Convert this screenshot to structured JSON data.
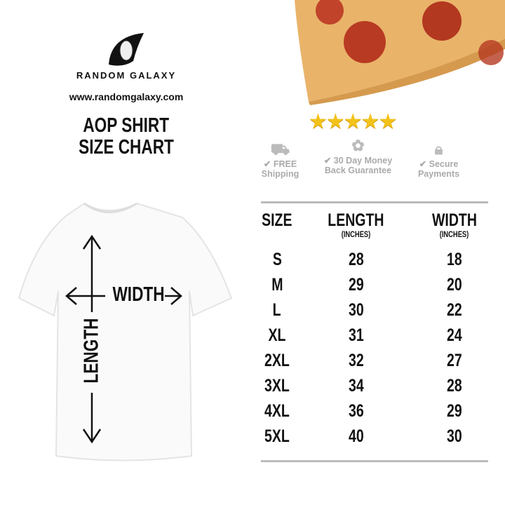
{
  "brand": {
    "name": "RANDOM GALAXY",
    "url": "www.randomgalaxy.com"
  },
  "title": {
    "line1": "AOP SHIRT",
    "line2": "SIZE CHART"
  },
  "rating": {
    "stars": 5,
    "max": 5,
    "color": "#f3c21a"
  },
  "badges": [
    {
      "icon": "truck-icon",
      "label": "FREE Shipping"
    },
    {
      "icon": "award-ribbon-icon",
      "label": "30 Day Money Back Guarantee"
    },
    {
      "icon": "lock-icon",
      "label": "Secure Payments"
    }
  ],
  "diagram": {
    "width_label": "WIDTH",
    "length_label": "LENGTH"
  },
  "table": {
    "headers": [
      "SIZE",
      "LENGTH",
      "WIDTH"
    ],
    "units": [
      "",
      "(INCHES)",
      "(INCHES)"
    ],
    "rows": [
      [
        "S",
        "28",
        "18"
      ],
      [
        "M",
        "29",
        "20"
      ],
      [
        "L",
        "30",
        "22"
      ],
      [
        "XL",
        "31",
        "24"
      ],
      [
        "2XL",
        "32",
        "27"
      ],
      [
        "3XL",
        "34",
        "28"
      ],
      [
        "4XL",
        "36",
        "29"
      ],
      [
        "5XL",
        "40",
        "30"
      ]
    ]
  }
}
